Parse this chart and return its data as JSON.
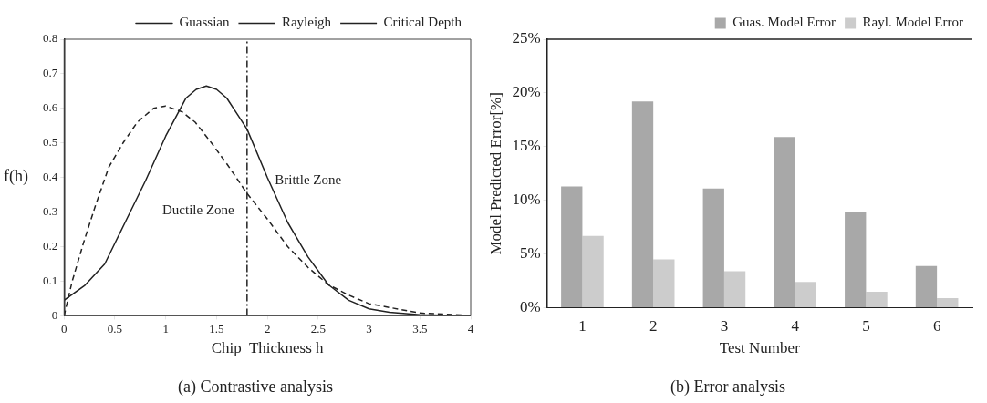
{
  "chart_data": [
    {
      "type": "line",
      "title": "(a) Contrastive analysis",
      "xlabel": "Chip  Thickness h",
      "ylabel": "f(h)",
      "xlim": [
        0,
        4
      ],
      "ylim": [
        0,
        0.8
      ],
      "xticks": [
        0,
        0.5,
        1,
        1.5,
        2,
        2.5,
        3,
        3.5,
        4
      ],
      "yticks": [
        0,
        0.1,
        0.2,
        0.3,
        0.4,
        0.5,
        0.6,
        0.7,
        0.8
      ],
      "grid": false,
      "legend": "top right",
      "marker": "none",
      "series": [
        {
          "name": "Guassian",
          "color": "#222222",
          "line_style": "solid",
          "x": [
            0,
            0.2,
            0.4,
            0.5,
            0.6,
            0.8,
            1.0,
            1.2,
            1.3,
            1.4,
            1.5,
            1.6,
            1.8,
            2.0,
            2.2,
            2.4,
            2.6,
            2.8,
            3.0,
            3.2,
            3.5,
            4.0
          ],
          "values": [
            0.045,
            0.087,
            0.15,
            0.21,
            0.27,
            0.39,
            0.52,
            0.63,
            0.655,
            0.665,
            0.655,
            0.63,
            0.54,
            0.4,
            0.27,
            0.17,
            0.09,
            0.045,
            0.02,
            0.01,
            0.003,
            0
          ]
        },
        {
          "name": "Rayleigh",
          "color": "#222222",
          "line_style": "dashed",
          "x": [
            0,
            0.08,
            0.19,
            0.31,
            0.44,
            0.58,
            0.72,
            0.88,
            1.0,
            1.16,
            1.29,
            1.45,
            1.6,
            1.8,
            2.0,
            2.2,
            2.4,
            2.6,
            2.8,
            3.0,
            3.5,
            4.0
          ],
          "values": [
            0,
            0.1,
            0.21,
            0.32,
            0.43,
            0.5,
            0.56,
            0.6,
            0.607,
            0.59,
            0.56,
            0.5,
            0.44,
            0.354,
            0.28,
            0.2,
            0.14,
            0.09,
            0.06,
            0.035,
            0.008,
            0.001
          ]
        },
        {
          "name": "Critical Depth",
          "color": "#222222",
          "line_style": "dotted",
          "x": [
            1.8,
            1.8
          ],
          "values": [
            0,
            0.8
          ]
        }
      ],
      "annotations": [
        "Ductile Zone",
        "Brittle Zone"
      ]
    },
    {
      "type": "bar",
      "title": "(b) Error analysis",
      "xlabel": "Test Number",
      "ylabel": "Model Predicted Error[%]",
      "categories": [
        "1",
        "2",
        "3",
        "4",
        "5",
        "6"
      ],
      "ylim": [
        0,
        25
      ],
      "yticks": [
        {
          "value": 0,
          "label": "0%"
        },
        {
          "value": 5,
          "label": "5%"
        },
        {
          "value": 10,
          "label": "10%"
        },
        {
          "value": 15,
          "label": "15%"
        },
        {
          "value": 20,
          "label": "20%"
        },
        {
          "value": 25,
          "label": "25%"
        }
      ],
      "grid": false,
      "legend": "top right",
      "series": [
        {
          "name": "Guas. Model Error",
          "color": "#a8a8a8",
          "values": [
            11.3,
            19.2,
            11.1,
            15.9,
            8.9,
            3.9
          ]
        },
        {
          "name": "Rayl. Model Error",
          "color": "#cccccc",
          "values": [
            6.7,
            4.5,
            3.4,
            2.4,
            1.5,
            0.9
          ]
        }
      ]
    }
  ]
}
